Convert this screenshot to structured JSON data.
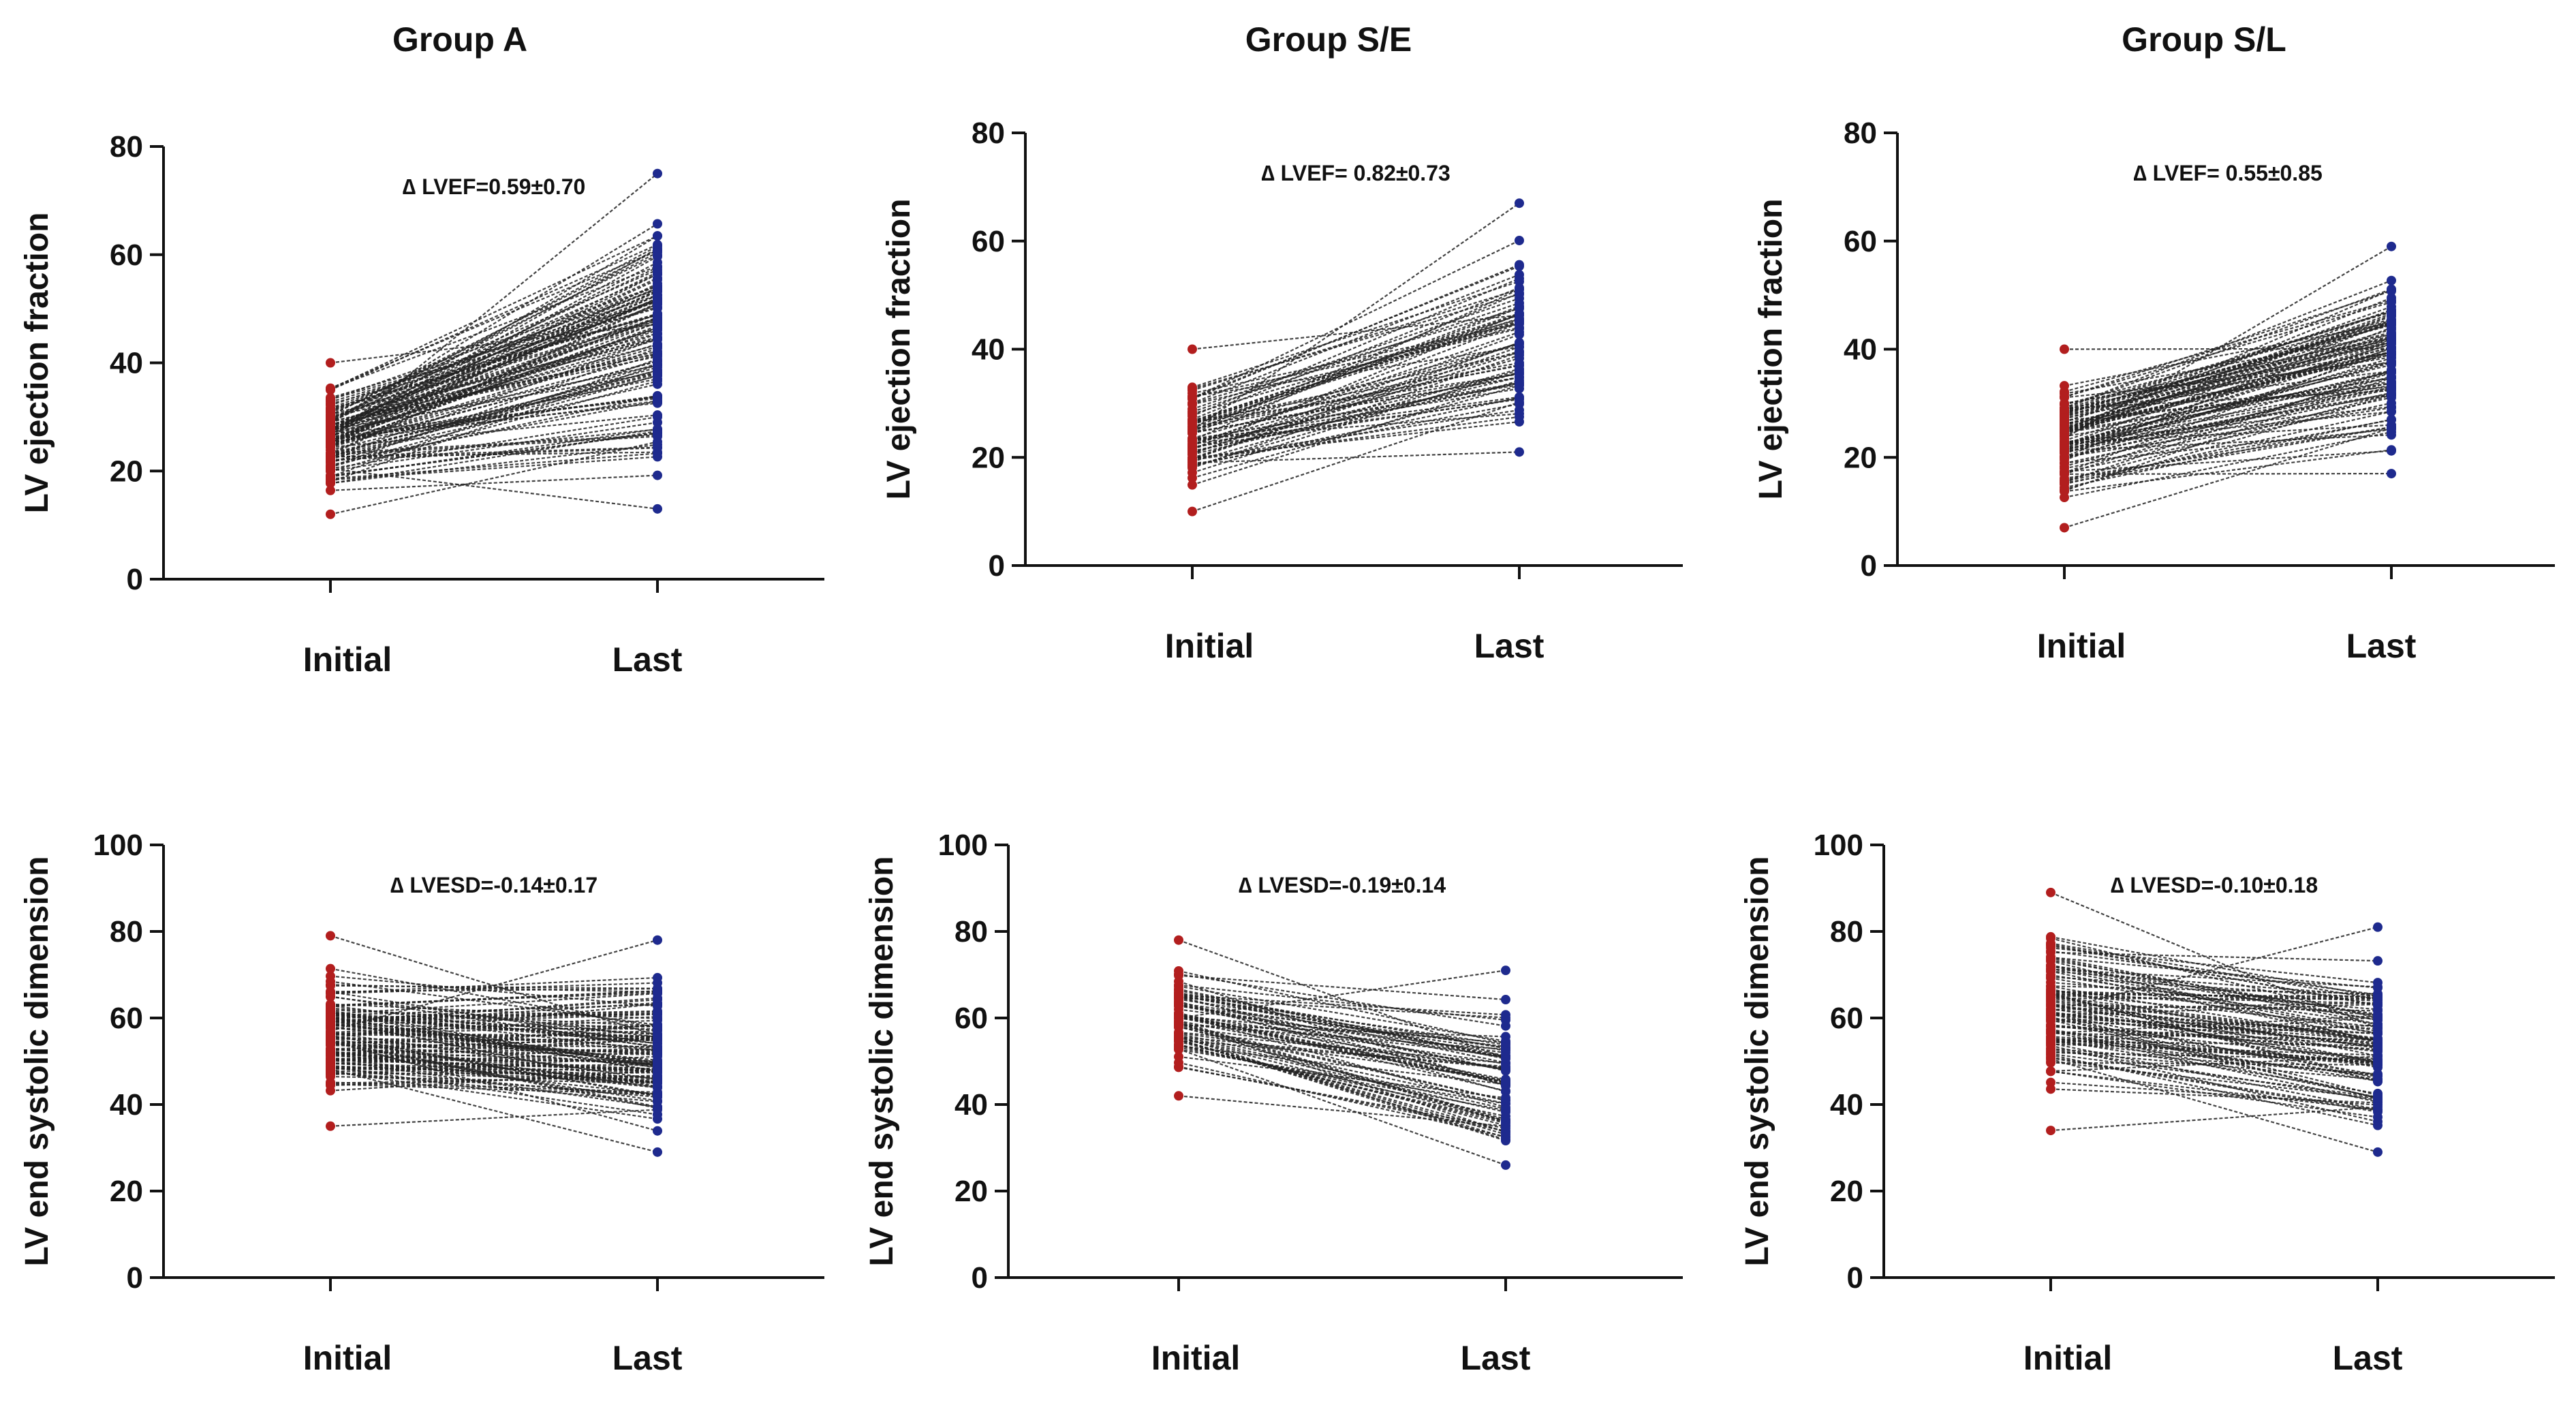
{
  "figure": {
    "group_titles": [
      "Group A",
      "Group S/E",
      "Group S/L"
    ]
  },
  "colors": {
    "initial": "#b21e1e",
    "last": "#1e2a8e",
    "line": "#222222"
  },
  "chart_data": [
    {
      "type": "line",
      "panel": "A-LVEF",
      "group": "Group A",
      "ylabel": "LV ejection fraction",
      "ylim": [
        0,
        80
      ],
      "yticks": [
        0,
        20,
        40,
        60,
        80
      ],
      "categories": [
        "Initial",
        "Last"
      ],
      "annotation": "∆ LVEF=0.59±0.70",
      "n_pairs": 120,
      "initial_range": [
        12,
        40
      ],
      "last_range": [
        13,
        75
      ],
      "initial_extremes": [
        12,
        40
      ],
      "last_extremes": [
        13,
        75
      ]
    },
    {
      "type": "line",
      "panel": "SE-LVEF",
      "group": "Group S/E",
      "ylabel": "LV ejection fraction",
      "ylim": [
        0,
        80
      ],
      "yticks": [
        0,
        20,
        40,
        60,
        80
      ],
      "categories": [
        "Initial",
        "Last"
      ],
      "annotation": "∆ LVEF= 0.82±0.73",
      "n_pairs": 70,
      "initial_range": [
        10,
        40
      ],
      "last_range": [
        21,
        67
      ],
      "initial_extremes": [
        10,
        40
      ],
      "last_extremes": [
        21,
        67
      ]
    },
    {
      "type": "line",
      "panel": "SL-LVEF",
      "group": "Group S/L",
      "ylabel": "LV ejection fraction",
      "ylim": [
        0,
        80
      ],
      "yticks": [
        0,
        20,
        40,
        60,
        80
      ],
      "categories": [
        "Initial",
        "Last"
      ],
      "annotation": "∆ LVEF= 0.55±0.85",
      "n_pairs": 100,
      "initial_range": [
        7,
        40
      ],
      "last_range": [
        17,
        59
      ],
      "initial_extremes": [
        7,
        40
      ],
      "last_extremes": [
        17,
        59
      ]
    },
    {
      "type": "line",
      "panel": "A-LVESD",
      "group": "Group A",
      "ylabel": "LV end systolic dimension",
      "ylim": [
        0,
        100
      ],
      "yticks": [
        0,
        20,
        40,
        60,
        80,
        100
      ],
      "categories": [
        "Initial",
        "Last"
      ],
      "annotation": "∆ LVESD=-0.14±0.17",
      "n_pairs": 120,
      "initial_range": [
        35,
        79
      ],
      "last_range": [
        29,
        78
      ],
      "initial_extremes": [
        35,
        79
      ],
      "last_extremes": [
        29,
        78
      ]
    },
    {
      "type": "line",
      "panel": "SE-LVESD",
      "group": "Group S/E",
      "ylabel": "LV end systolic dimension",
      "ylim": [
        0,
        100
      ],
      "yticks": [
        0,
        20,
        40,
        60,
        80,
        100
      ],
      "categories": [
        "Initial",
        "Last"
      ],
      "annotation": "∆ LVESD=-0.19±0.14",
      "n_pairs": 70,
      "initial_range": [
        42,
        78
      ],
      "last_range": [
        26,
        71
      ],
      "initial_extremes": [
        42,
        78
      ],
      "last_extremes": [
        26,
        71
      ]
    },
    {
      "type": "line",
      "panel": "SL-LVESD",
      "group": "Group S/L",
      "ylabel": "LV end systolic dimension",
      "ylim": [
        0,
        100
      ],
      "yticks": [
        0,
        20,
        40,
        60,
        80,
        100
      ],
      "categories": [
        "Initial",
        "Last"
      ],
      "annotation": "∆ LVESD=-0.10±0.18",
      "n_pairs": 100,
      "initial_range": [
        34,
        89
      ],
      "last_range": [
        29,
        81
      ],
      "initial_extremes": [
        34,
        89
      ],
      "last_extremes": [
        29,
        81
      ]
    }
  ]
}
